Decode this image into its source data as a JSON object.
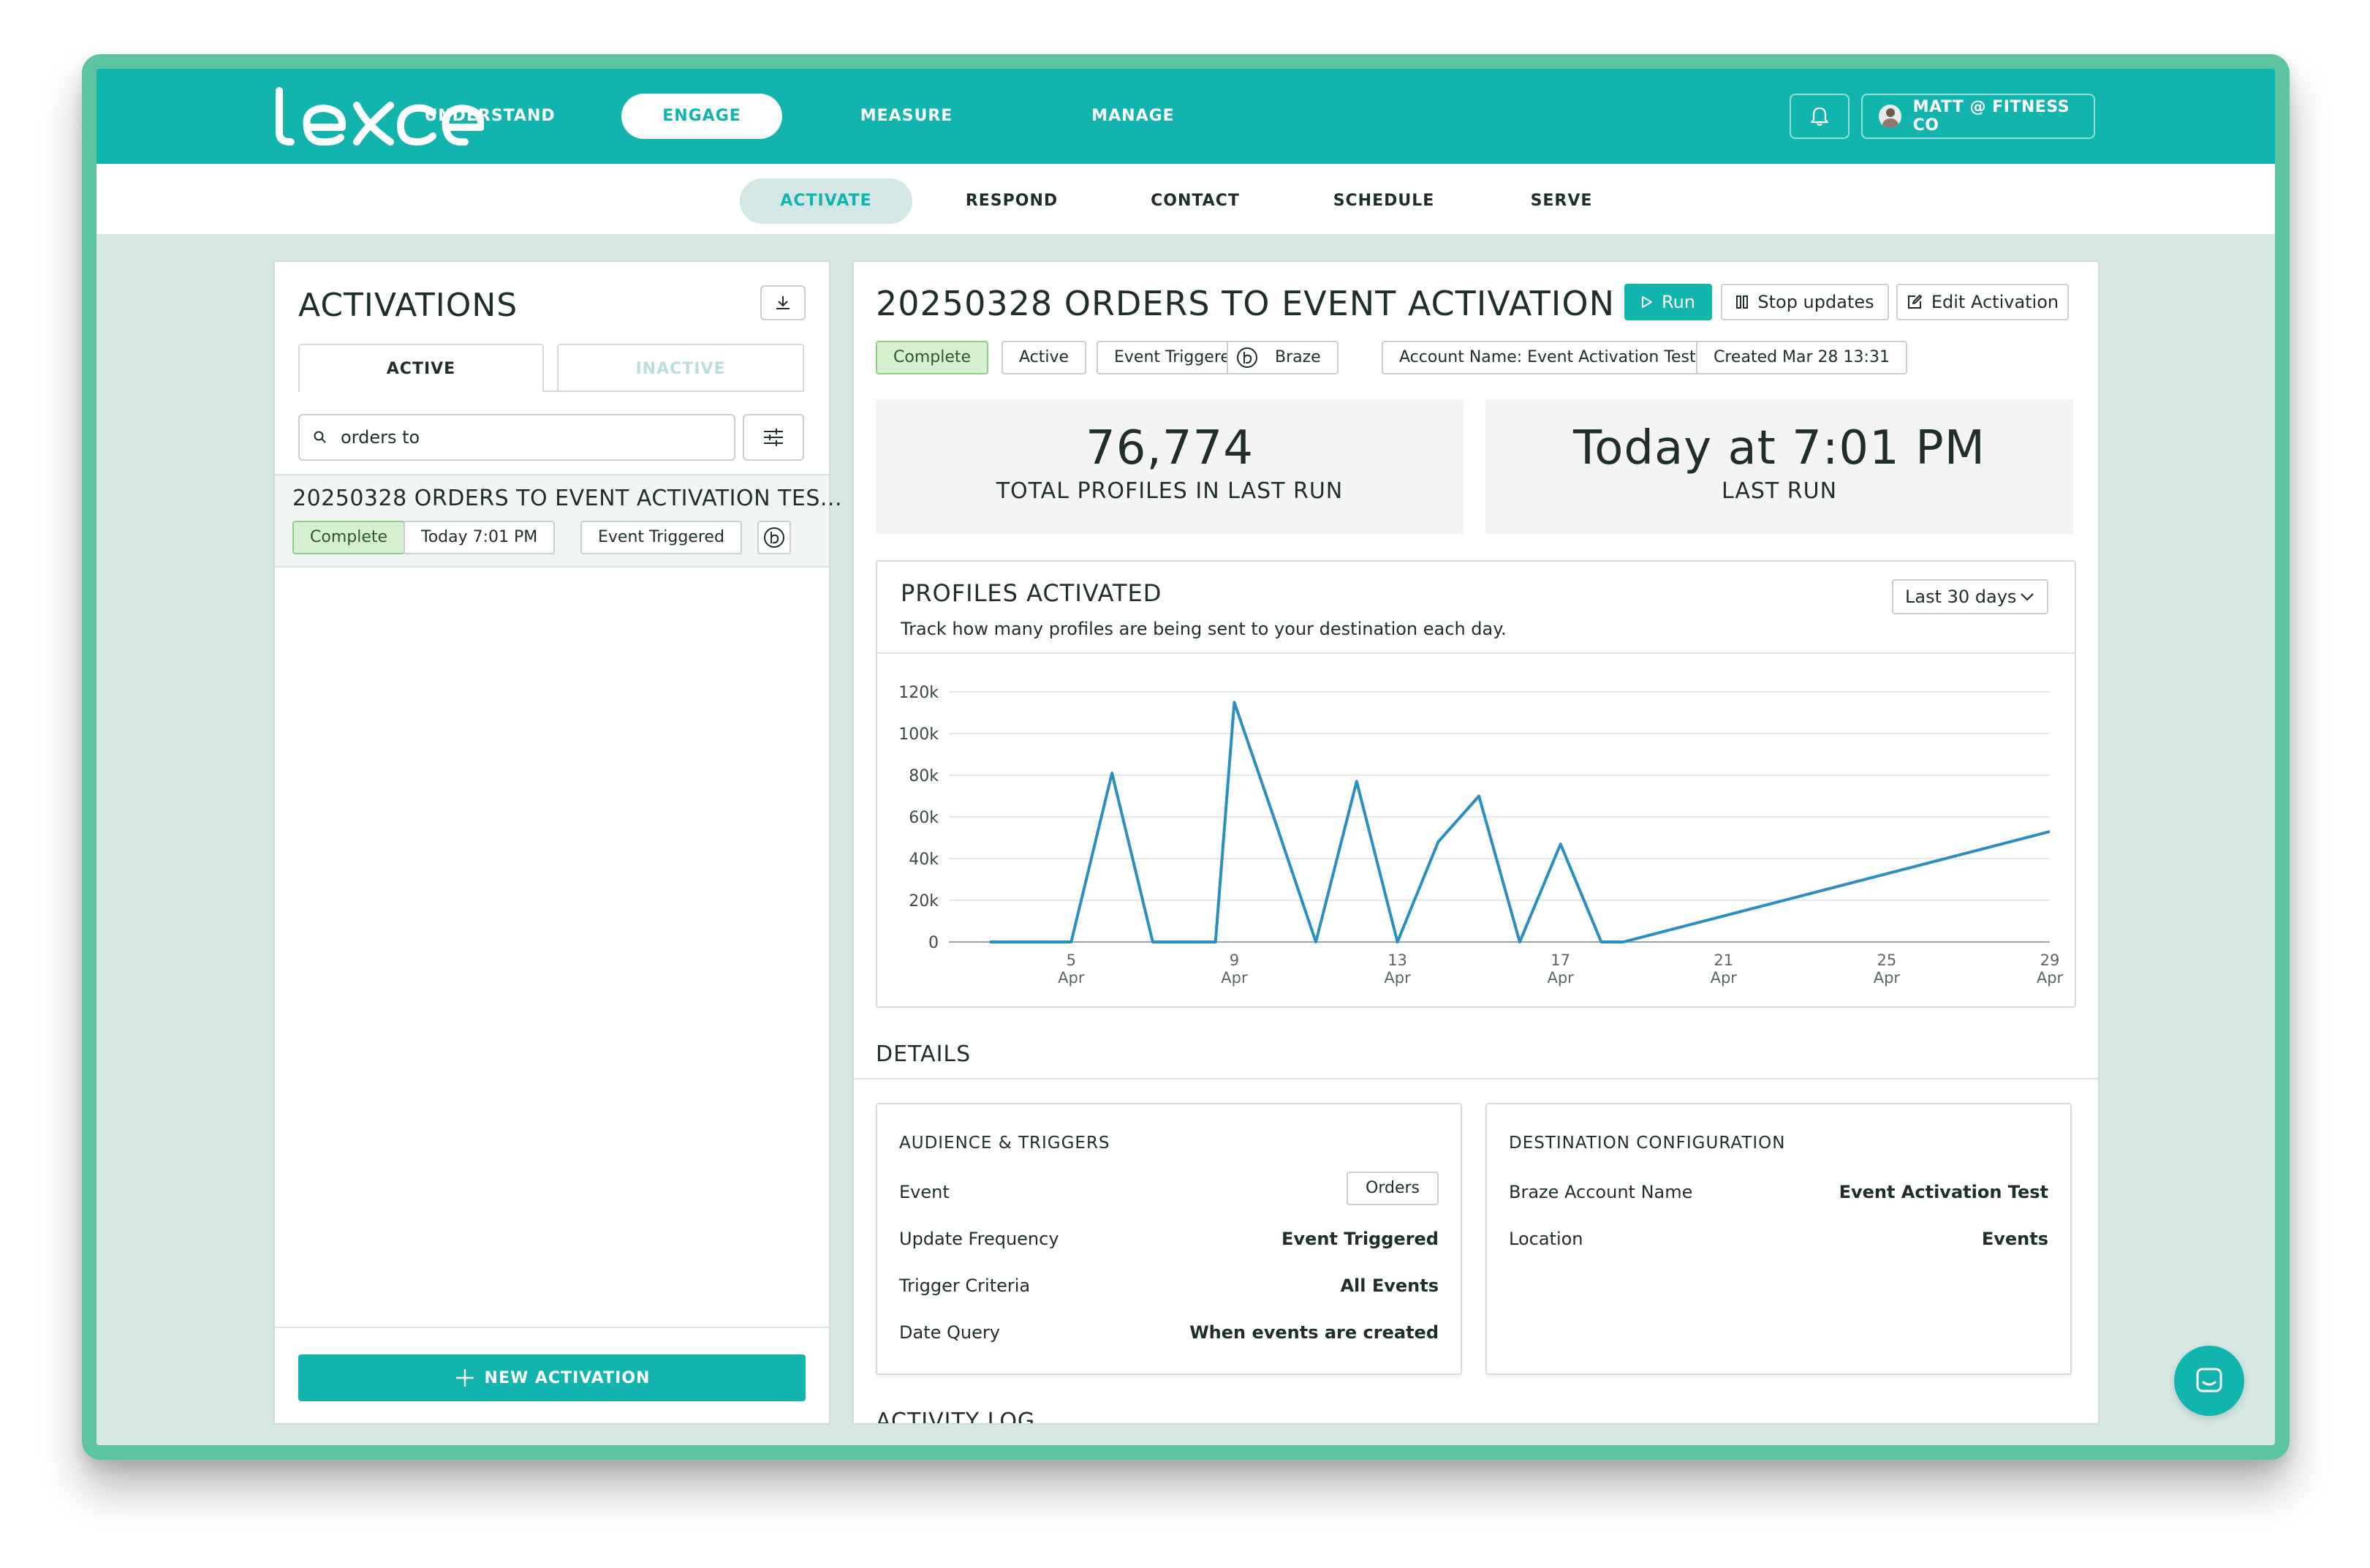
{
  "app": {
    "logo_text": "lexer",
    "main_nav": [
      "UNDERSTAND",
      "ENGAGE",
      "MEASURE",
      "MANAGE"
    ],
    "active_main_nav": "ENGAGE",
    "user_label": "MATT @ FITNESS CO",
    "sub_nav": [
      "ACTIVATE",
      "RESPOND",
      "CONTACT",
      "SCHEDULE",
      "SERVE"
    ],
    "active_sub_nav": "ACTIVATE"
  },
  "sidebar": {
    "title": "ACTIVATIONS",
    "tabs": [
      "ACTIVE",
      "INACTIVE"
    ],
    "search_value": "orders to",
    "items": [
      {
        "title": "20250328 ORDERS TO EVENT ACTIVATION TES...",
        "status": "Complete",
        "time": "Today 7:01 PM",
        "type": "Event Triggered",
        "destination_icon": "braze-icon"
      }
    ],
    "new_button": "NEW ACTIVATION"
  },
  "detail": {
    "title": "20250328 ORDERS TO EVENT ACTIVATION TEST",
    "actions": {
      "run": "Run",
      "stop": "Stop updates",
      "edit": "Edit Activation"
    },
    "tags": {
      "status": "Complete",
      "state": "Active",
      "type": "Event Triggered",
      "destination": "Braze",
      "account": "Account Name: Event Activation Test",
      "created": "Created Mar 28 13:31"
    },
    "stats": {
      "total_profiles": "76,774",
      "total_profiles_label": "TOTAL PROFILES IN LAST RUN",
      "last_run": "Today at 7:01 PM",
      "last_run_label": "LAST RUN"
    },
    "chart_card": {
      "title": "PROFILES ACTIVATED",
      "subtitle": "Track how many profiles are being sent to your destination each day.",
      "range": "Last 30 days"
    },
    "details_title": "DETAILS",
    "audience": {
      "title": "AUDIENCE & TRIGGERS",
      "event_label": "Event",
      "event_value": "Orders",
      "frequency_label": "Update Frequency",
      "frequency_value": "Event Triggered",
      "criteria_label": "Trigger Criteria",
      "criteria_value": "All Events",
      "date_label": "Date Query",
      "date_value": "When events are created"
    },
    "destination": {
      "title": "DESTINATION CONFIGURATION",
      "account_label": "Braze Account Name",
      "account_value": "Event Activation Test",
      "location_label": "Location",
      "location_value": "Events"
    },
    "next_section_peek": "ACTIVITY LOG"
  },
  "colors": {
    "brand": "#12b5ad",
    "frame": "#5cc4a0",
    "background": "#d6e8e4",
    "line": "#2a8fbf",
    "status_green": "#d4f0cf"
  },
  "chart_data": {
    "type": "line",
    "xlabel": "",
    "ylabel": "",
    "y_ticks": [
      "0",
      "20k",
      "40k",
      "60k",
      "80k",
      "100k",
      "120k"
    ],
    "x_ticks": [
      {
        "day": "5",
        "month": "Apr"
      },
      {
        "day": "9",
        "month": "Apr"
      },
      {
        "day": "13",
        "month": "Apr"
      },
      {
        "day": "17",
        "month": "Apr"
      },
      {
        "day": "21",
        "month": "Apr"
      },
      {
        "day": "25",
        "month": "Apr"
      },
      {
        "day": "29",
        "month": "Apr"
      }
    ],
    "ylim": [
      0,
      120000
    ],
    "grid": true,
    "series": [
      {
        "x": [
          "2025-04-03",
          "2025-04-04",
          "2025-04-05",
          "2025-04-06",
          "2025-04-07",
          "2025-04-08",
          "2025-04-08",
          "2025-04-09",
          "2025-04-10",
          "2025-04-11",
          "2025-04-12",
          "2025-04-13",
          "2025-04-14",
          "2025-04-15",
          "2025-04-16",
          "2025-04-17",
          "2025-04-18",
          "2025-04-18",
          "2025-04-29"
        ],
        "values": [
          0,
          0,
          0,
          81000,
          0,
          0,
          0,
          115000,
          58000,
          0,
          77000,
          0,
          48000,
          70000,
          0,
          47000,
          0,
          0,
          53000
        ]
      }
    ]
  }
}
